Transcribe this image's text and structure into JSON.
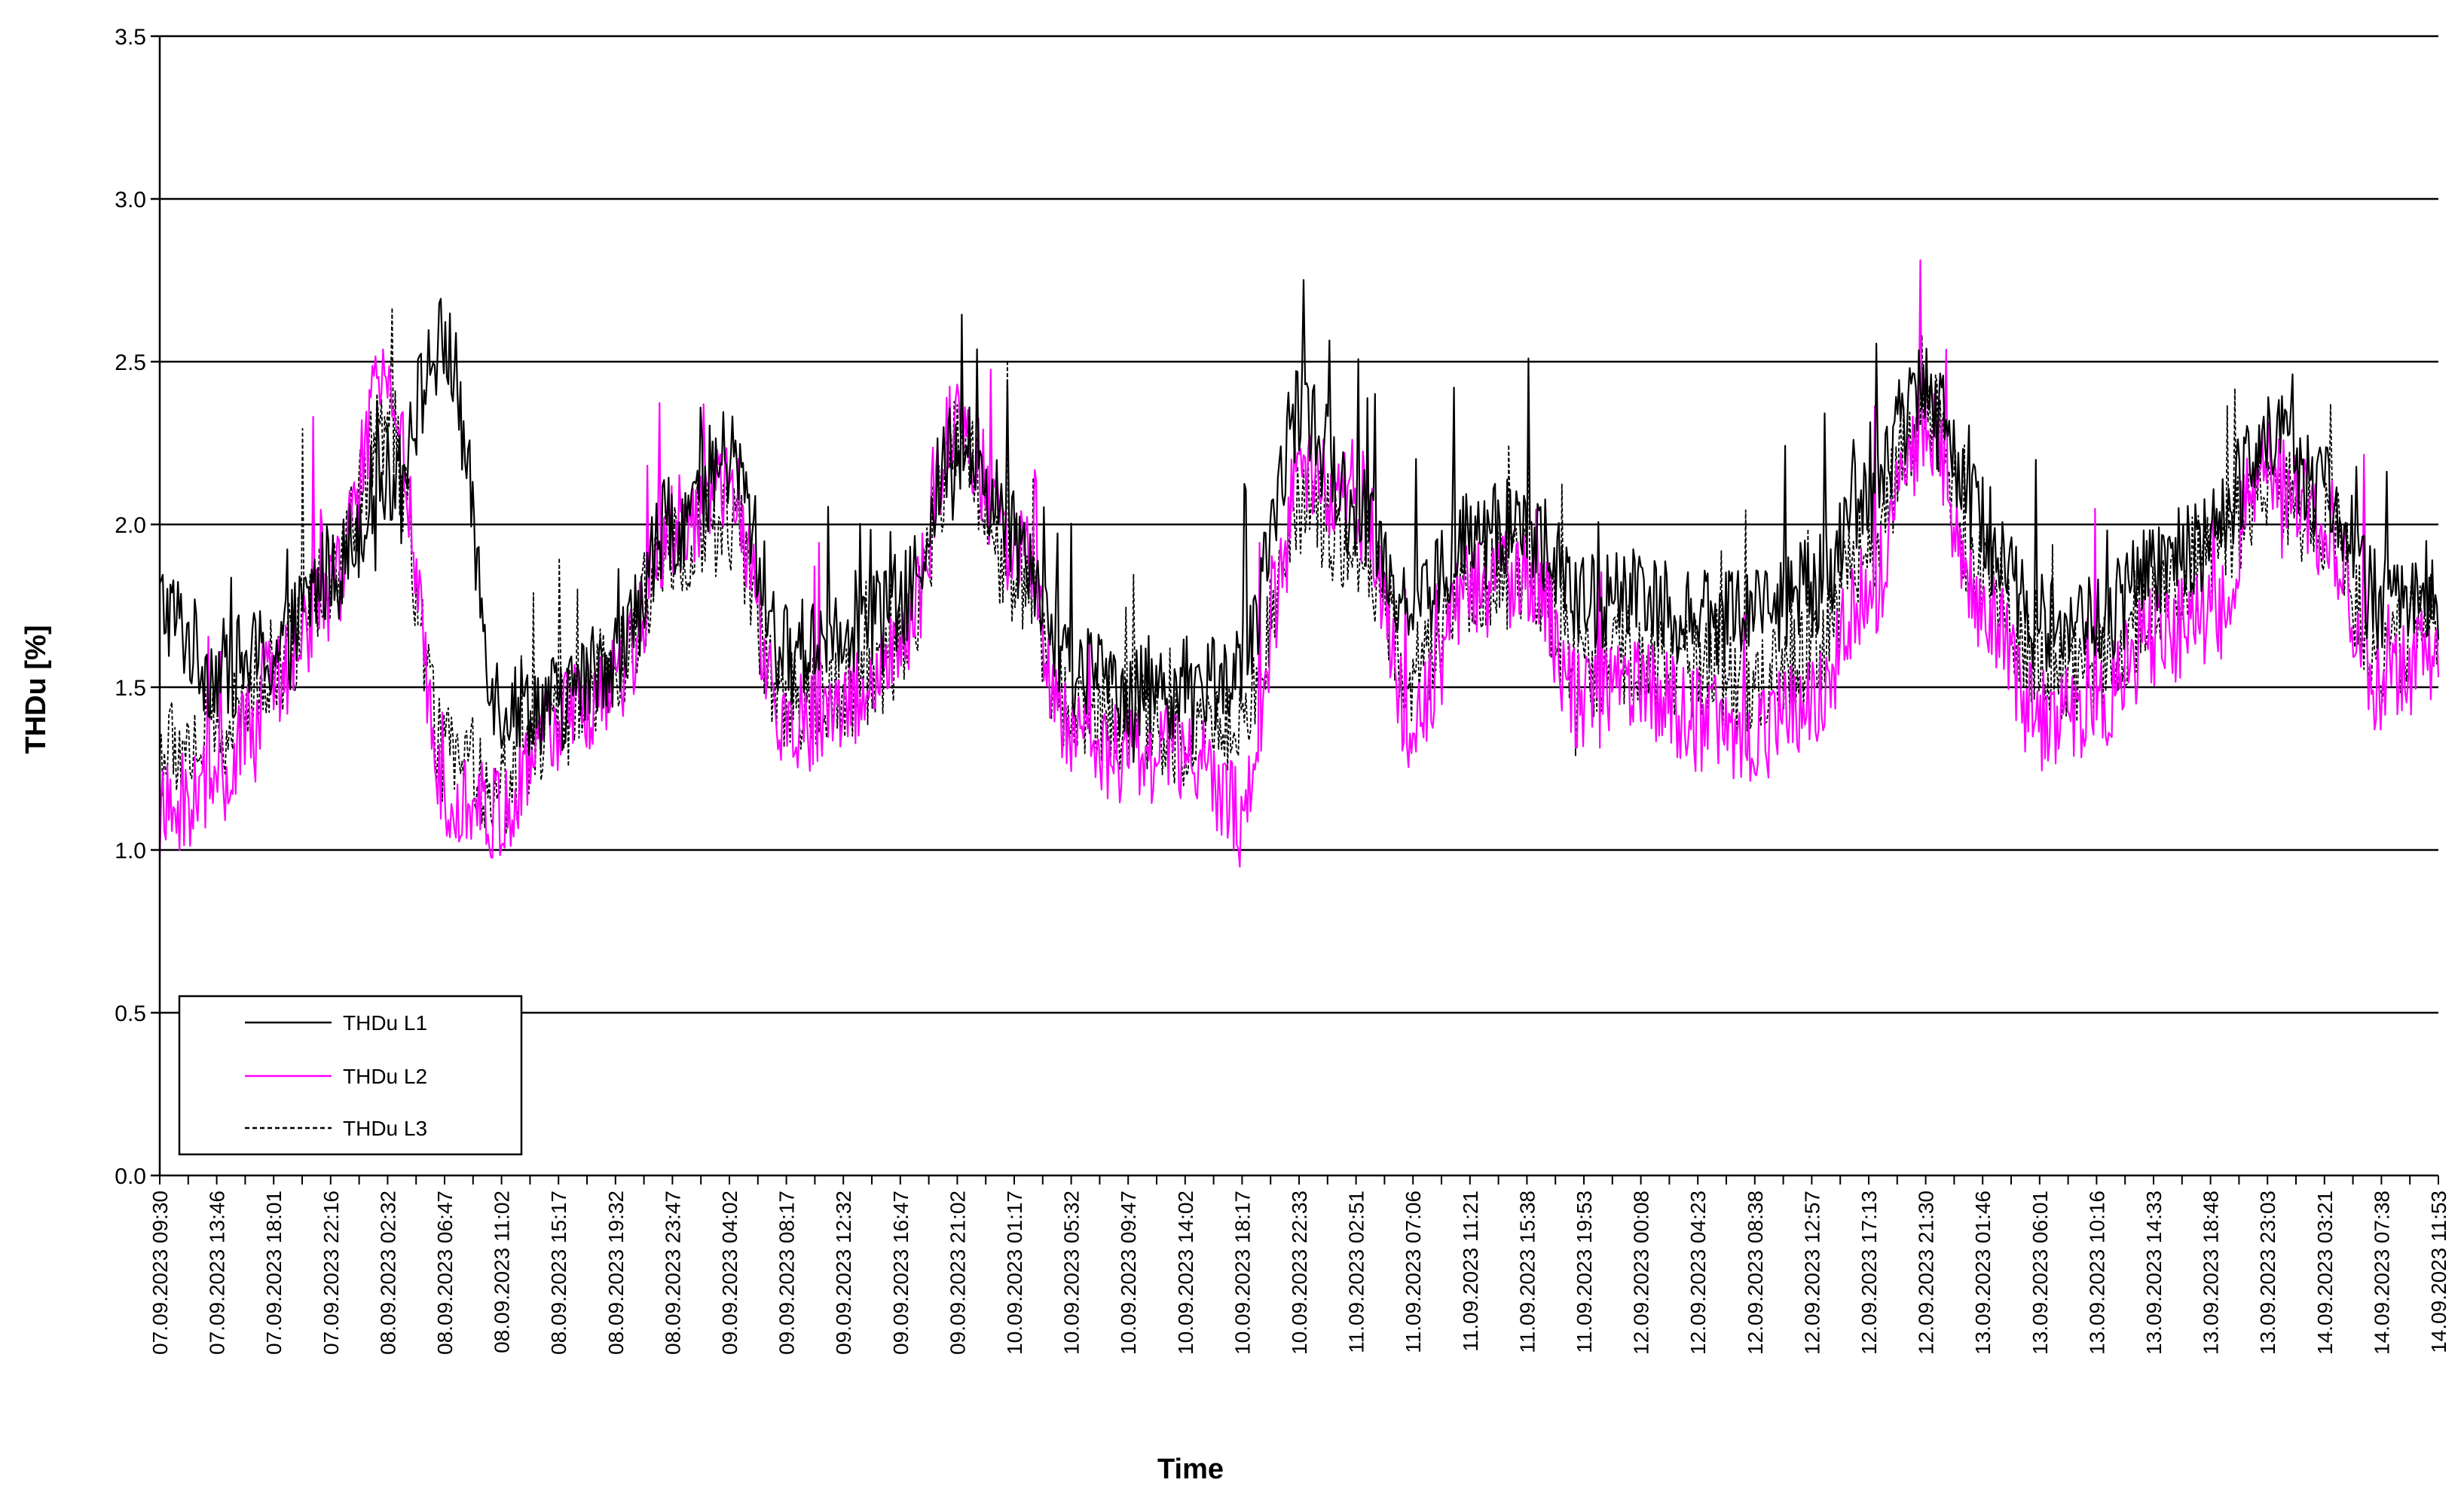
{
  "chart_data": {
    "type": "line",
    "xlabel": "Time",
    "ylabel": "THDu [%]",
    "ylim": [
      0,
      3.5
    ],
    "yticks": [
      "0.0",
      "0.5",
      "1.0",
      "1.5",
      "2.0",
      "2.5",
      "3.0",
      "3.5"
    ],
    "gridlines": "horizontal",
    "legend_position": "bottom-left",
    "x_tick_labels": [
      "07.09.2023 09:30",
      "07.09.2023 13:46",
      "07.09.2023 18:01",
      "07.09.2023 22:16",
      "08.09.2023 02:32",
      "08.09.2023 06:47",
      "08.09.2023 11:02",
      "08.09.2023 15:17",
      "08.09.2023 19:32",
      "08.09.2023 23:47",
      "09.09.2023 04:02",
      "09.09.2023 08:17",
      "09.09.2023 12:32",
      "09.09.2023 16:47",
      "09.09.2023 21:02",
      "10.09.2023 01:17",
      "10.09.2023 05:32",
      "10.09.2023 09:47",
      "10.09.2023 14:02",
      "10.09.2023 18:17",
      "10.09.2023 22:33",
      "11.09.2023 02:51",
      "11.09.2023 07:06",
      "11.09.2023 11:21",
      "11.09.2023 15:38",
      "11.09.2023 19:53",
      "12.09.2023 00:08",
      "12.09.2023 04:23",
      "12.09.2023 08:38",
      "12.09.2023 12:57",
      "12.09.2023 17:13",
      "12.09.2023 21:30",
      "13.09.2023 01:46",
      "13.09.2023 06:01",
      "13.09.2023 10:16",
      "13.09.2023 14:33",
      "13.09.2023 18:48",
      "13.09.2023 23:03",
      "14.09.2023 03:21",
      "14.09.2023 07:38",
      "14.09.2023 11:53"
    ],
    "series": [
      {
        "name": "THDu L1",
        "color": "#000000",
        "dash": "solid",
        "values": [
          1.75,
          1.55,
          1.6,
          1.85,
          2.15,
          2.55,
          1.45,
          1.45,
          1.6,
          2.0,
          2.2,
          1.6,
          1.7,
          1.75,
          2.25,
          2.0,
          1.55,
          1.5,
          1.5,
          1.55,
          2.35,
          2.05,
          1.75,
          1.95,
          2.0,
          1.75,
          1.8,
          1.7,
          1.75,
          1.8,
          2.1,
          2.45,
          2.0,
          1.7,
          1.7,
          1.85,
          1.95,
          2.3,
          2.1,
          1.75,
          1.8
        ]
      },
      {
        "name": "THDu L2",
        "color": "#ff00ff",
        "dash": "solid",
        "values": [
          1.1,
          1.2,
          1.5,
          1.8,
          2.45,
          1.2,
          1.1,
          1.4,
          1.5,
          2.0,
          2.1,
          1.35,
          1.45,
          1.6,
          2.3,
          1.95,
          1.35,
          1.3,
          1.3,
          1.1,
          2.15,
          2.1,
          1.4,
          1.8,
          1.85,
          1.45,
          1.5,
          1.4,
          1.35,
          1.45,
          1.8,
          2.3,
          1.75,
          1.4,
          1.45,
          1.65,
          1.7,
          2.2,
          2.0,
          1.5,
          1.6
        ]
      },
      {
        "name": "THDu L3",
        "color": "#000000",
        "dash": "dashed",
        "values": [
          1.3,
          1.35,
          1.55,
          1.85,
          2.3,
          1.3,
          1.2,
          1.4,
          1.55,
          1.95,
          2.0,
          1.45,
          1.5,
          1.6,
          2.25,
          1.85,
          1.45,
          1.4,
          1.35,
          1.4,
          2.05,
          1.95,
          1.55,
          1.8,
          1.85,
          1.55,
          1.6,
          1.55,
          1.5,
          1.6,
          1.95,
          2.35,
          1.85,
          1.55,
          1.55,
          1.75,
          1.9,
          2.1,
          2.0,
          1.6,
          1.7
        ]
      }
    ]
  }
}
